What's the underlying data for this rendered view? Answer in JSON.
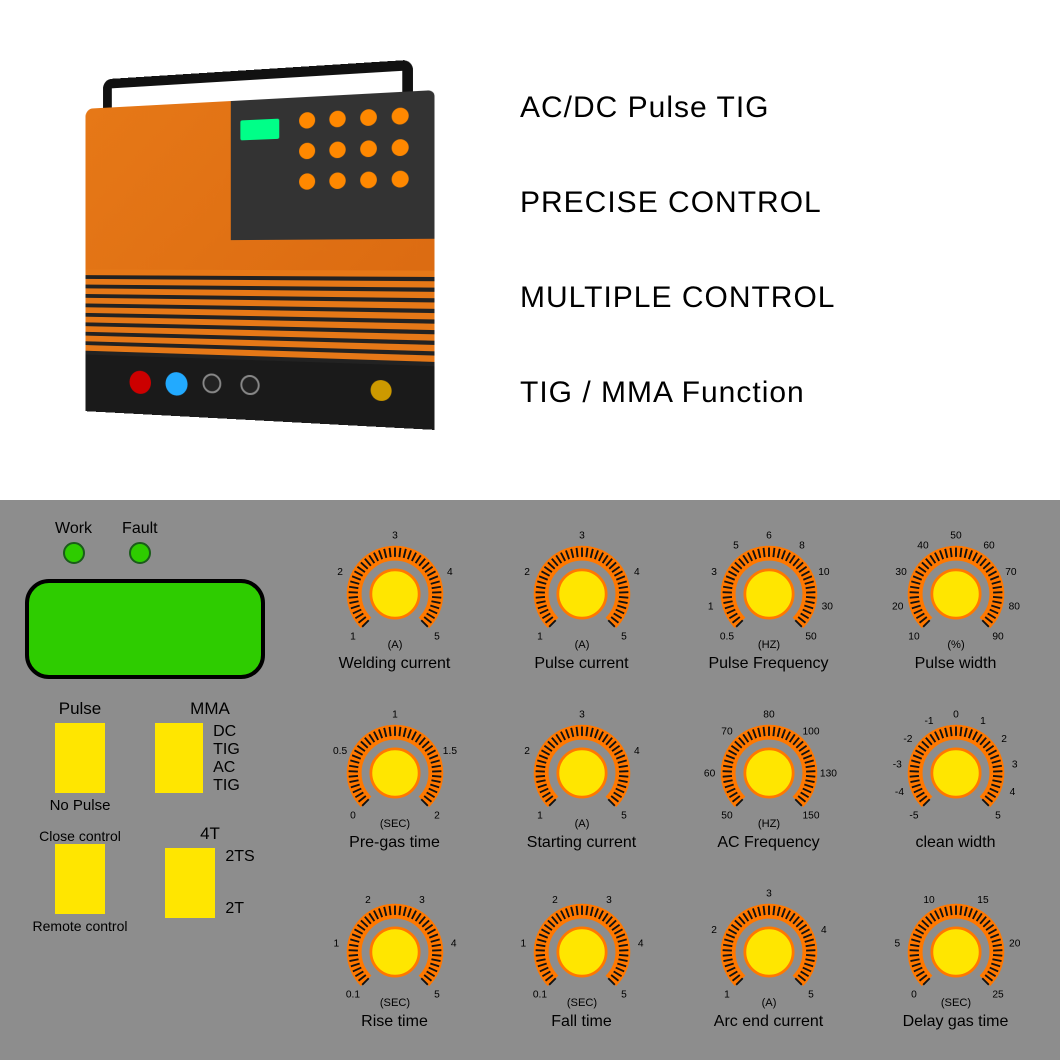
{
  "features": [
    "AC/DC Pulse  TIG",
    "PRECISE CONTROL",
    "MULTIPLE CONTROL",
    "TIG / MMA  Function"
  ],
  "colors": {
    "panel_bg": "#8d8d8d",
    "led_green": "#2ecc00",
    "display_green": "#2ecc00",
    "switch_yellow": "#ffe600",
    "dial_orange": "#ff7800",
    "dial_knob": "#ffe600",
    "dial_dark": "#111111",
    "machine_orange": "#e67817"
  },
  "status": {
    "work_label": "Work",
    "fault_label": "Fault"
  },
  "switches": {
    "row1": {
      "left": {
        "top": "Pulse",
        "bottom": "No Pulse"
      },
      "right": {
        "top": "MMA",
        "side_top": "DC TIG",
        "side_bottom": "AC TIG"
      }
    },
    "row2": {
      "left": {
        "top": "Close control",
        "bottom": "Remote control"
      },
      "right": {
        "top": "4T",
        "side_mid": "2TS",
        "side_bottom": "2T"
      }
    }
  },
  "dials": [
    {
      "label": "Welding current",
      "unit": "(A)",
      "ticks": [
        "1",
        "2",
        "3",
        "4",
        "5"
      ]
    },
    {
      "label": "Pulse current",
      "unit": "(A)",
      "ticks": [
        "1",
        "2",
        "3",
        "4",
        "5"
      ]
    },
    {
      "label": "Pulse Frequency",
      "unit": "(HZ)",
      "ticks": [
        "0.5",
        "1",
        "3",
        "5",
        "6",
        "8",
        "10",
        "30",
        "50"
      ]
    },
    {
      "label": "Pulse width",
      "unit": "(%)",
      "ticks": [
        "10",
        "20",
        "30",
        "40",
        "50",
        "60",
        "70",
        "80",
        "90"
      ]
    },
    {
      "label": "Pre-gas time",
      "unit": "(SEC)",
      "ticks": [
        "0",
        "0.5",
        "1",
        "1.5",
        "2"
      ]
    },
    {
      "label": "Starting current",
      "unit": "(A)",
      "ticks": [
        "1",
        "2",
        "3",
        "4",
        "5"
      ]
    },
    {
      "label": "AC Frequency",
      "unit": "(HZ)",
      "ticks": [
        "50",
        "60",
        "70",
        "80",
        "100",
        "130",
        "150"
      ]
    },
    {
      "label": "clean  width",
      "unit": "",
      "ticks": [
        "-5",
        "-4",
        "-3",
        "-2",
        "-1",
        "0",
        "1",
        "2",
        "3",
        "4",
        "5"
      ]
    },
    {
      "label": "Rise time",
      "unit": "(SEC)",
      "ticks": [
        "0.1",
        "1",
        "2",
        "3",
        "4",
        "5"
      ]
    },
    {
      "label": "Fall time",
      "unit": "(SEC)",
      "ticks": [
        "0.1",
        "1",
        "2",
        "3",
        "4",
        "5"
      ]
    },
    {
      "label": "Arc end current",
      "unit": "(A)",
      "ticks": [
        "1",
        "2",
        "3",
        "4",
        "5"
      ]
    },
    {
      "label": "Delay gas time",
      "unit": "(SEC)",
      "ticks": [
        "0",
        "5",
        "10",
        "15",
        "20",
        "25"
      ]
    }
  ]
}
